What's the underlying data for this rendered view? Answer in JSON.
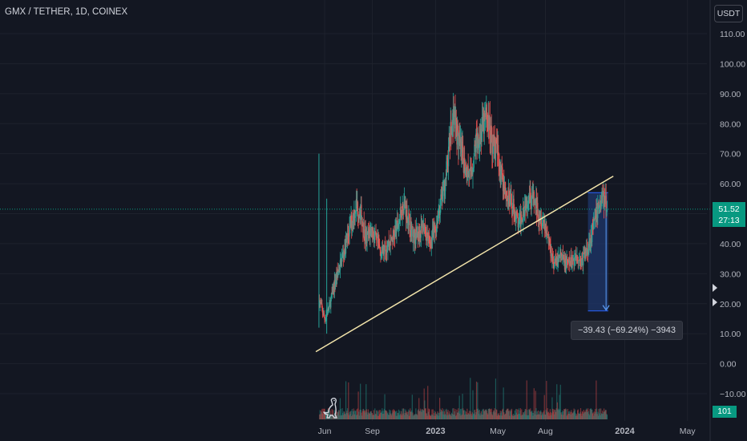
{
  "header": {
    "symbol_title": "GMX / TETHER, 1D, COINEX",
    "currency_button": "USDT"
  },
  "price_tag": {
    "price": "51.52",
    "countdown": "27:13"
  },
  "volume_tag": "101",
  "measure": {
    "label": "−39.43 (−69.24%) −3943"
  },
  "icons": {
    "logo": "tradingview-dino-logo-icon",
    "alert_markers": "alert-arrow-icon"
  },
  "colors": {
    "background": "#131722",
    "up": "#26a69a",
    "down": "#ef5350",
    "trendline": "#f3e5ab",
    "measure_fill": "#1e3566",
    "measure_border": "#2962ff",
    "price_line": "#089981"
  },
  "chart_data": {
    "type": "candlestick",
    "title": "GMX / TETHER, 1D, COINEX",
    "y_ticks": [
      "110.00",
      "100.00",
      "90.00",
      "80.00",
      "70.00",
      "60.00",
      "50.00",
      "40.00",
      "30.00",
      "20.00",
      "10.00",
      "0.00",
      "−10.00"
    ],
    "ylim": [
      -10,
      110
    ],
    "x_ticks": [
      "Jun",
      "Sep",
      "2023",
      "May",
      "Aug",
      "2024",
      "May"
    ],
    "x_tick_dates": [
      "2022-06-01",
      "2022-09-01",
      "2023-01-01",
      "2023-05-01",
      "2023-08-01",
      "2024-01-01",
      "2024-05-01"
    ],
    "xlim": [
      "2022-05-01",
      "2024-05-20"
    ],
    "series": [
      {
        "values": [
          [
            "2022-05-22",
            21
          ],
          [
            "2022-06-01",
            15
          ],
          [
            "2022-06-10",
            19
          ],
          [
            "2022-06-22",
            28
          ],
          [
            "2022-07-01",
            33
          ],
          [
            "2022-07-12",
            40
          ],
          [
            "2022-07-22",
            47
          ],
          [
            "2022-08-01",
            53
          ],
          [
            "2022-08-10",
            50
          ],
          [
            "2022-08-20",
            41
          ],
          [
            "2022-08-30",
            45
          ],
          [
            "2022-09-10",
            40
          ],
          [
            "2022-09-20",
            37
          ],
          [
            "2022-10-01",
            40
          ],
          [
            "2022-10-10",
            42
          ],
          [
            "2022-10-20",
            46
          ],
          [
            "2022-11-01",
            54
          ],
          [
            "2022-11-10",
            48
          ],
          [
            "2022-11-20",
            42
          ],
          [
            "2022-12-01",
            44
          ],
          [
            "2022-12-10",
            46
          ],
          [
            "2022-12-20",
            40
          ],
          [
            "2022-12-30",
            44
          ],
          [
            "2023-01-10",
            53
          ],
          [
            "2023-01-20",
            61
          ],
          [
            "2023-01-28",
            74
          ],
          [
            "2023-02-05",
            84
          ],
          [
            "2023-02-15",
            73
          ],
          [
            "2023-02-25",
            67
          ],
          [
            "2023-03-10",
            62
          ],
          [
            "2023-03-20",
            74
          ],
          [
            "2023-04-01",
            78
          ],
          [
            "2023-04-10",
            83
          ],
          [
            "2023-04-20",
            74
          ],
          [
            "2023-05-01",
            70
          ],
          [
            "2023-05-10",
            62
          ],
          [
            "2023-05-20",
            55
          ],
          [
            "2023-06-01",
            52
          ],
          [
            "2023-06-10",
            46
          ],
          [
            "2023-06-20",
            52
          ],
          [
            "2023-07-01",
            57
          ],
          [
            "2023-07-10",
            54
          ],
          [
            "2023-07-20",
            50
          ],
          [
            "2023-08-01",
            46
          ],
          [
            "2023-08-10",
            39
          ],
          [
            "2023-08-18",
            33
          ],
          [
            "2023-08-28",
            36
          ],
          [
            "2023-09-10",
            33
          ],
          [
            "2023-09-20",
            34
          ],
          [
            "2023-10-01",
            36
          ],
          [
            "2023-10-10",
            34
          ],
          [
            "2023-10-20",
            38
          ],
          [
            "2023-11-01",
            45
          ],
          [
            "2023-11-10",
            52
          ],
          [
            "2023-11-20",
            56
          ],
          [
            "2023-11-28",
            51.52
          ]
        ]
      }
    ],
    "volume": {
      "last_value": 101
    },
    "annotations": {
      "last_price": 51.52,
      "countdown": "27:13",
      "trendline": {
        "from": [
          "2022-05-15",
          4
        ],
        "to": [
          "2023-12-10",
          62.5
        ]
      },
      "measure_box": {
        "from": "2023-10-22",
        "to": "2023-11-30",
        "high": 57,
        "low": 17.6,
        "change": "−39.43 (−69.24%) −3943"
      }
    }
  }
}
